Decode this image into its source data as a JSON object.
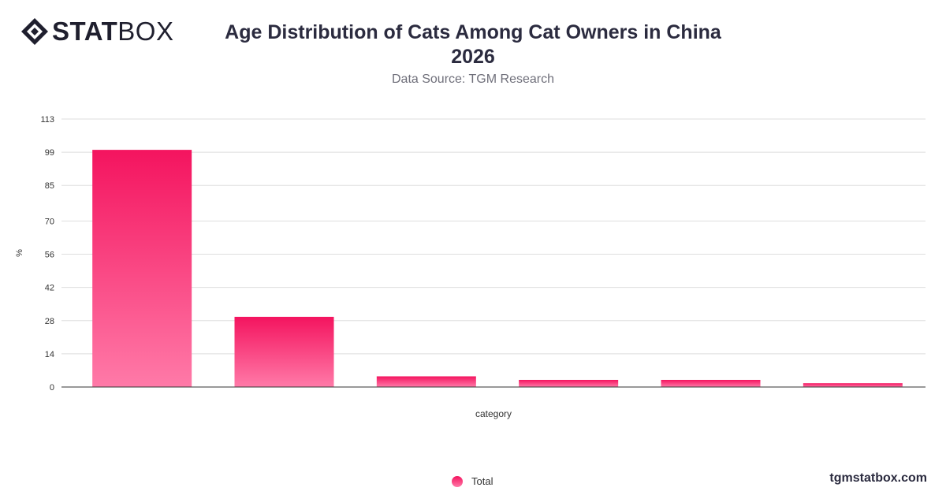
{
  "brand": {
    "name_bold": "STAT",
    "name_light": "BOX",
    "footer": "tgmstatbox.com"
  },
  "header": {
    "title_line1": "Age Distribution of Cats Among Cat Owners in China",
    "title_line2": "2026",
    "subtitle": "Data Source: TGM Research"
  },
  "chart_data": {
    "type": "bar",
    "categories": [
      "",
      "",
      "",
      "",
      "",
      ""
    ],
    "series": [
      {
        "name": "Total",
        "values": [
          100,
          29.6,
          4.5,
          3.0,
          3.0,
          1.6
        ],
        "color": "#f4145f"
      }
    ],
    "xlabel": "category",
    "ylabel": "%",
    "yticks": [
      0,
      14,
      28,
      42,
      56,
      70,
      85,
      99,
      113
    ],
    "ylim": [
      0,
      113
    ],
    "grid": true,
    "legend_position": "bottom-center"
  },
  "legend": {
    "items": [
      {
        "label": "Total"
      }
    ]
  }
}
